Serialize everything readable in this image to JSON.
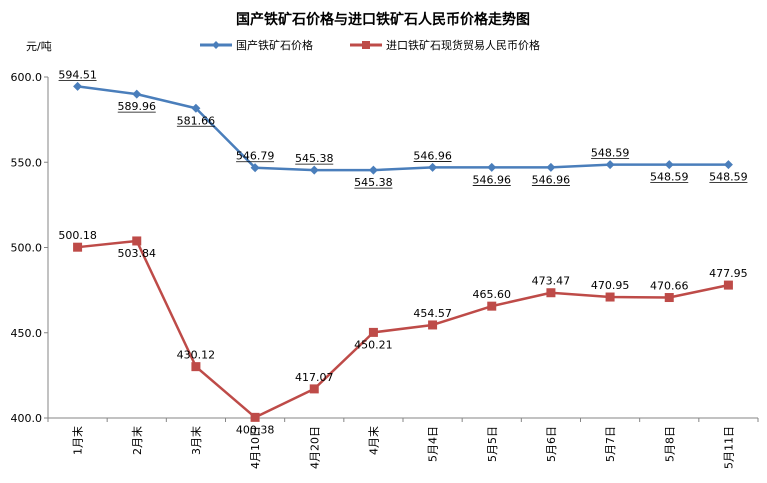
{
  "chart_data": {
    "type": "line",
    "title": "国产铁矿石价格与进口铁矿石人民币价格走势图",
    "ylabel": "元/吨",
    "xlabel": "",
    "ylim": [
      400,
      600
    ],
    "yticks": [
      "400.0",
      "450.0",
      "500.0",
      "550.0",
      "600.0"
    ],
    "ytick_values": [
      400,
      450,
      500,
      550,
      600
    ],
    "categories": [
      "1月末",
      "2月末",
      "3月末",
      "4月10日",
      "4月20日",
      "4月末",
      "5月4日",
      "5月5日",
      "5月6日",
      "5月7日",
      "5月8日",
      "5月11日"
    ],
    "legend_position": "top",
    "grid": false,
    "series": [
      {
        "name": "国产铁矿石价格",
        "color": "#4a7ebb",
        "marker": "diamond",
        "values": [
          594.51,
          589.96,
          581.66,
          546.79,
          545.38,
          545.38,
          546.96,
          546.96,
          546.96,
          548.59,
          548.59,
          548.59
        ],
        "labels": [
          "594.51",
          "589.96",
          "581.66",
          "546.79",
          "545.38",
          "545.38",
          "546.96",
          "546.96",
          "546.96",
          "548.59",
          "548.59",
          "548.59"
        ]
      },
      {
        "name": "进口铁矿石现货贸易人民币价格",
        "color": "#be4b48",
        "marker": "square",
        "values": [
          500.18,
          503.84,
          430.12,
          400.38,
          417.07,
          450.21,
          454.57,
          465.6,
          473.47,
          470.95,
          470.66,
          477.95
        ],
        "labels": [
          "500.18",
          "503.84",
          "430.12",
          "400.38",
          "417.07",
          "450.21",
          "454.57",
          "465.60",
          "473.47",
          "470.95",
          "470.66",
          "477.95"
        ]
      }
    ]
  }
}
